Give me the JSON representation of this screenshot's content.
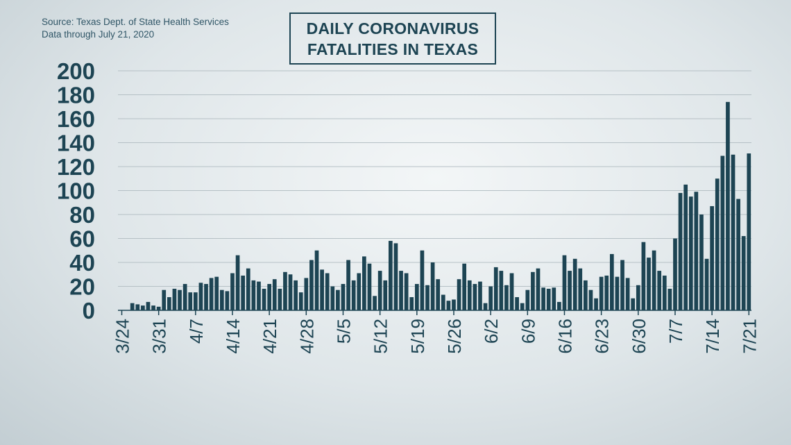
{
  "source": {
    "line1": "Source: Texas Dept. of State Health Services",
    "line2": "Data through July 21, 2020"
  },
  "title": {
    "line1": "DAILY CORONAVIRUS",
    "line2": "FATALITIES IN TEXAS"
  },
  "colors": {
    "bar": "#1d4453",
    "grid": "#b5c0c5",
    "text": "#1d4453"
  },
  "chart_data": {
    "type": "bar",
    "title": "DAILY CORONAVIRUS FATALITIES IN TEXAS",
    "ylim": [
      0,
      200
    ],
    "yticks": [
      0,
      20,
      40,
      60,
      80,
      100,
      120,
      140,
      160,
      180,
      200
    ],
    "grid": true,
    "x_tick_labels": [
      {
        "label": "3/24",
        "day": 0
      },
      {
        "label": "3/31",
        "day": 7
      },
      {
        "label": "4/7",
        "day": 14
      },
      {
        "label": "4/14",
        "day": 21
      },
      {
        "label": "4/21",
        "day": 28
      },
      {
        "label": "4/28",
        "day": 35
      },
      {
        "label": "5/5",
        "day": 42
      },
      {
        "label": "5/12",
        "day": 49
      },
      {
        "label": "5/19",
        "day": 56
      },
      {
        "label": "5/26",
        "day": 63
      },
      {
        "label": "6/2",
        "day": 70
      },
      {
        "label": "6/9",
        "day": 77
      },
      {
        "label": "6/16",
        "day": 84
      },
      {
        "label": "6/23",
        "day": 91
      },
      {
        "label": "6/30",
        "day": 98
      },
      {
        "label": "7/7",
        "day": 105
      },
      {
        "label": "7/14",
        "day": 112
      },
      {
        "label": "7/21",
        "day": 119
      }
    ],
    "values": [
      0,
      0,
      6,
      5,
      4,
      7,
      4,
      3,
      17,
      11,
      18,
      17,
      22,
      15,
      15,
      23,
      22,
      27,
      28,
      17,
      16,
      31,
      46,
      29,
      35,
      25,
      24,
      18,
      22,
      26,
      18,
      32,
      30,
      25,
      15,
      27,
      42,
      50,
      34,
      31,
      20,
      17,
      22,
      42,
      25,
      31,
      45,
      39,
      12,
      33,
      25,
      58,
      56,
      33,
      31,
      11,
      22,
      50,
      21,
      40,
      26,
      13,
      8,
      9,
      26,
      39,
      25,
      22,
      24,
      6,
      20,
      36,
      33,
      21,
      31,
      11,
      6,
      17,
      32,
      35,
      19,
      18,
      19,
      7,
      46,
      33,
      43,
      35,
      25,
      17,
      10,
      28,
      29,
      47,
      28,
      42,
      27,
      10,
      21,
      57,
      44,
      50,
      33,
      29,
      18,
      60,
      98,
      105,
      95,
      99,
      80,
      43,
      87,
      110,
      129,
      174,
      130,
      93,
      62,
      131
    ]
  }
}
